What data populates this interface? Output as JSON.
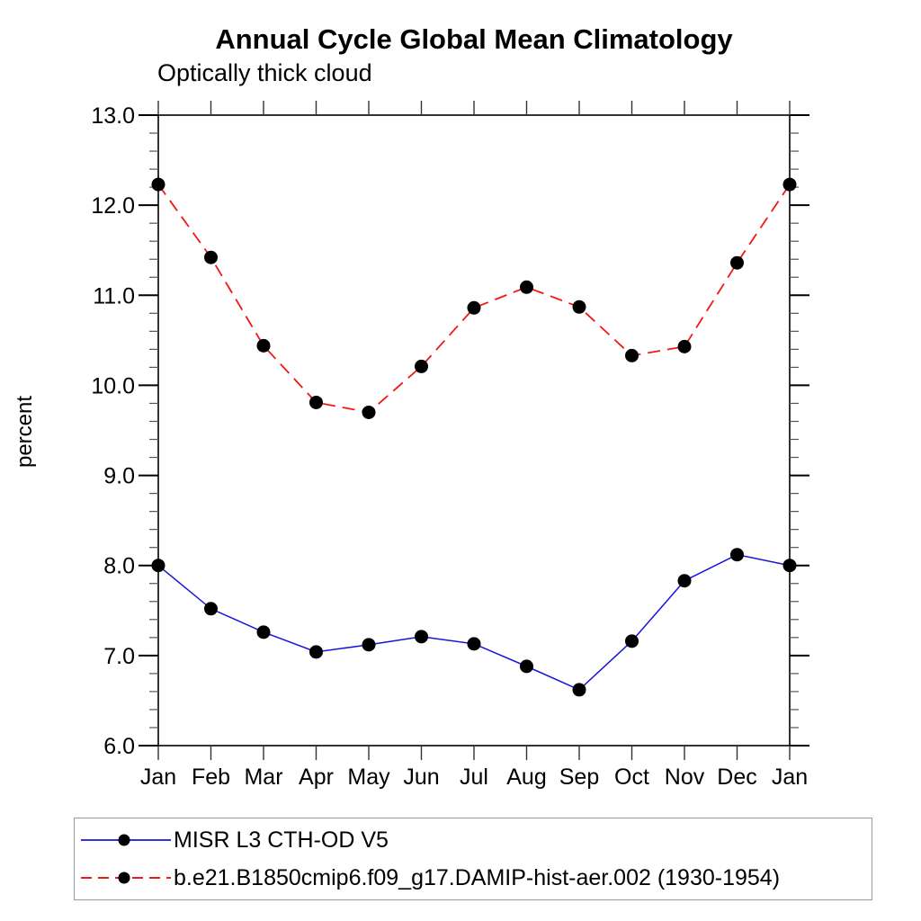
{
  "header": {
    "title": "Annual Cycle Global Mean Climatology",
    "subtitle": "Optically thick cloud"
  },
  "chart_data": {
    "type": "line",
    "categories": [
      "Jan",
      "Feb",
      "Mar",
      "Apr",
      "May",
      "Jun",
      "Jul",
      "Aug",
      "Sep",
      "Oct",
      "Nov",
      "Dec",
      "Jan"
    ],
    "series": [
      {
        "name": "MISR L3 CTH-OD V5",
        "color": "#1515dd",
        "line_style": "solid",
        "marker": "filled-circle",
        "marker_color": "#000000",
        "values": [
          8.0,
          7.52,
          7.26,
          7.04,
          7.12,
          7.21,
          7.13,
          6.88,
          6.62,
          7.16,
          7.83,
          8.12,
          8.0
        ]
      },
      {
        "name": "b.e21.B1850cmip6.f09_g17.DAMIP-hist-aer.002 (1930-1954)",
        "color": "#f11717",
        "line_style": "dashed",
        "marker": "filled-circle",
        "marker_color": "#000000",
        "values": [
          12.23,
          11.42,
          10.44,
          9.81,
          9.7,
          10.21,
          10.86,
          11.09,
          10.87,
          10.33,
          10.43,
          11.36,
          12.23
        ]
      }
    ],
    "title": "Annual Cycle Global Mean Climatology",
    "subtitle": "Optically thick cloud",
    "xlabel": "",
    "ylabel": "percent",
    "ylim": [
      6.0,
      13.0
    ],
    "yticks_major": [
      6.0,
      7.0,
      8.0,
      9.0,
      10.0,
      11.0,
      12.0,
      13.0
    ],
    "ytick_labels": [
      "6.0",
      "7.0",
      "8.0",
      "9.0",
      "10.0",
      "11.0",
      "12.0",
      "13.0"
    ],
    "minor_tick_interval": 0.2,
    "grid": false,
    "frame": "box-with-outward-ticks",
    "legend_position": "bottom-left",
    "axis_color": "#000000"
  }
}
